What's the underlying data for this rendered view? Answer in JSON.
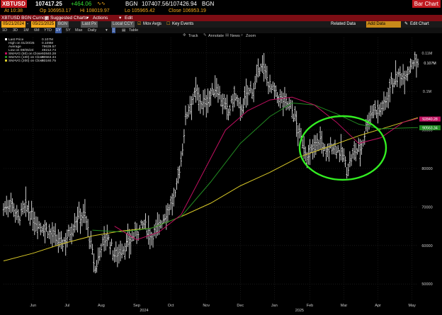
{
  "header": {
    "ticker": "XBTUSD",
    "last": "107417.25",
    "change": "+464.06",
    "source": "BGN",
    "bid_ask": "107407.56/107426.94",
    "bid_ask_source": "BGN",
    "time_label": "At 10:38",
    "open_label": "Op 106953.17",
    "high_label": "Hi 108019.97",
    "low_label": "Lo 105965.42",
    "close_label": "Close 106953.19",
    "chart_type": "Bar Chart"
  },
  "toolbar": {
    "security": "XBTUSD BGN Curncy",
    "suggested": "Suggested Charts",
    "actions": "Actions",
    "edit": "Edit",
    "start_date": "05/21/2024",
    "end_date": "05/21/2025",
    "pricing_source": "BGN",
    "price_field": "Last Px",
    "currency": "Local CCY",
    "mov_avgs": "Mov Avgs",
    "key_events": "Key Events",
    "related_data": "Related Data",
    "add_data": "Add Data",
    "edit_chart": "Edit Chart"
  },
  "periods": [
    "1D",
    "3D",
    "1M",
    "6M",
    "YTD",
    "1Y",
    "5Y",
    "Max"
  ],
  "selected_period": "1Y",
  "frequency": "Daily",
  "table_label": "Table",
  "tools": [
    "Track",
    "Annotate",
    "News",
    "Zoom"
  ],
  "legend": {
    "last_price": "Last Price",
    "last_price_val": "0.107M",
    "high": "High on 01/20/25",
    "high_val": "0.109M",
    "average": "Average",
    "average_val": "79639.57",
    "low": "Low on 08/05/24",
    "low_val": "49212.74",
    "sma50": "SMAVG (50)  on Close",
    "sma50_val": "92840.28",
    "sma100": "SMAVG (100)  on Close",
    "sma100_val": "90563.34",
    "sma200": "SMAVG (200)  on Close",
    "sma200_val": "93160.75"
  },
  "colors": {
    "price": "#ffffff",
    "sma50": "#c01060",
    "sma100": "#228b22",
    "sma200": "#d8c828",
    "ellipse": "#33ee22",
    "accent": "#f4a81d",
    "bar_red": "#7d0d14"
  },
  "chart_data": {
    "type": "bar",
    "title": "",
    "y_ticks": [
      "0.11M",
      "0.1M",
      "90000",
      "80000",
      "70000",
      "60000",
      "50000"
    ],
    "y_tick_values": [
      110000,
      100000,
      90000,
      80000,
      70000,
      60000,
      50000
    ],
    "ylim": [
      46000,
      114000
    ],
    "x_months": [
      "Jun",
      "Jul",
      "Aug",
      "Sep",
      "Oct",
      "Nov",
      "Dec",
      "Jan",
      "Feb",
      "Mar",
      "Apr",
      "May"
    ],
    "x_year_labels": [
      "2024",
      "2025"
    ],
    "price_tag": "0.107M",
    "sma_tags": [
      "92840.28",
      "90563.34"
    ],
    "price_series": [
      [
        0,
        69500
      ],
      [
        5,
        71500
      ],
      [
        10,
        67000
      ],
      [
        15,
        70000
      ],
      [
        20,
        67000
      ],
      [
        25,
        65000
      ],
      [
        30,
        64000
      ],
      [
        35,
        61500
      ],
      [
        40,
        60500
      ],
      [
        45,
        63500
      ],
      [
        50,
        67500
      ],
      [
        55,
        68000
      ],
      [
        60,
        58000
      ],
      [
        62,
        53500
      ],
      [
        66,
        60000
      ],
      [
        70,
        62500
      ],
      [
        75,
        57500
      ],
      [
        80,
        59000
      ],
      [
        85,
        61000
      ],
      [
        90,
        63500
      ],
      [
        95,
        65500
      ],
      [
        100,
        62500
      ],
      [
        103,
        64000
      ],
      [
        108,
        67000
      ],
      [
        112,
        70000
      ],
      [
        116,
        72500
      ],
      [
        118,
        78000
      ],
      [
        120,
        82000
      ],
      [
        123,
        93000
      ],
      [
        126,
        97000
      ],
      [
        130,
        99500
      ],
      [
        135,
        96500
      ],
      [
        140,
        99000
      ],
      [
        144,
        101500
      ],
      [
        148,
        97000
      ],
      [
        152,
        94500
      ],
      [
        156,
        99000
      ],
      [
        160,
        95000
      ],
      [
        165,
        99500
      ],
      [
        170,
        101500
      ],
      [
        174,
        107500
      ],
      [
        177,
        104500
      ],
      [
        180,
        101500
      ],
      [
        185,
        98500
      ],
      [
        190,
        97500
      ],
      [
        194,
        96000
      ],
      [
        197,
        93000
      ],
      [
        200,
        88500
      ],
      [
        203,
        86000
      ],
      [
        206,
        82500
      ],
      [
        210,
        86000
      ],
      [
        214,
        87500
      ],
      [
        218,
        83500
      ],
      [
        222,
        86000
      ],
      [
        226,
        85000
      ],
      [
        230,
        83000
      ],
      [
        232,
        79500
      ],
      [
        235,
        82500
      ],
      [
        238,
        84500
      ],
      [
        242,
        85500
      ],
      [
        246,
        92500
      ],
      [
        250,
        95500
      ],
      [
        254,
        95000
      ],
      [
        258,
        97000
      ],
      [
        262,
        102500
      ],
      [
        266,
        103500
      ],
      [
        270,
        104500
      ],
      [
        273,
        105000
      ],
      [
        276,
        108000
      ],
      [
        280,
        107417
      ]
    ],
    "sma50": [
      [
        75,
        65000
      ],
      [
        90,
        61500
      ],
      [
        105,
        63500
      ],
      [
        120,
        68000
      ],
      [
        135,
        79000
      ],
      [
        150,
        90000
      ],
      [
        165,
        95000
      ],
      [
        180,
        97800
      ],
      [
        195,
        98500
      ],
      [
        210,
        96500
      ],
      [
        225,
        92000
      ],
      [
        240,
        86500
      ],
      [
        255,
        88000
      ],
      [
        270,
        92000
      ],
      [
        280,
        93000
      ]
    ],
    "sma100": [
      [
        60,
        64000
      ],
      [
        80,
        63500
      ],
      [
        100,
        64500
      ],
      [
        120,
        67500
      ],
      [
        140,
        76500
      ],
      [
        160,
        86500
      ],
      [
        180,
        93500
      ],
      [
        195,
        97000
      ],
      [
        210,
        96500
      ],
      [
        225,
        94200
      ],
      [
        240,
        91500
      ],
      [
        255,
        90300
      ],
      [
        270,
        90500
      ],
      [
        280,
        90600
      ]
    ],
    "sma200": [
      [
        0,
        56000
      ],
      [
        20,
        58000
      ],
      [
        40,
        60500
      ],
      [
        60,
        62500
      ],
      [
        80,
        63800
      ],
      [
        100,
        64500
      ],
      [
        120,
        67500
      ],
      [
        140,
        71000
      ],
      [
        160,
        75500
      ],
      [
        180,
        79000
      ],
      [
        200,
        83000
      ],
      [
        220,
        85700
      ],
      [
        240,
        88500
      ],
      [
        260,
        90800
      ],
      [
        280,
        93200
      ]
    ]
  }
}
